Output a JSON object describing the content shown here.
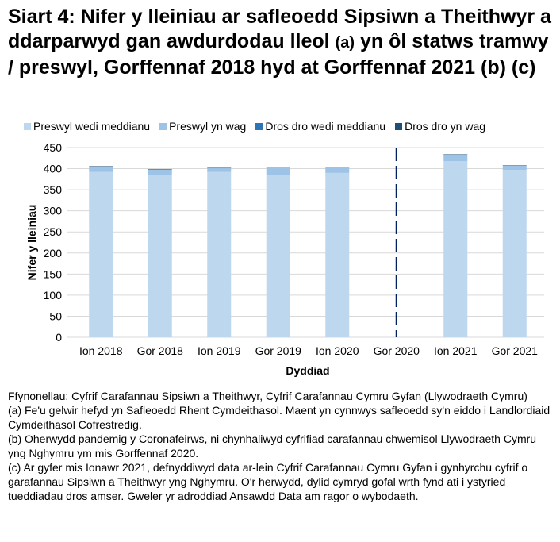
{
  "chart_data": {
    "type": "bar",
    "stacked": true,
    "title": "Siart 4: Nifer y lleiniau ar safleoedd Sipsiwn a Theithwyr a ddarparwyd gan awdurdodau lleol",
    "title_suffix": "(a)",
    "title_line2": "yn ôl statws tramwy / preswyl, Gorffennaf 2018 hyd at Gorffennaf 2021 (b) (c)",
    "xlabel": "Dyddiad",
    "ylabel": "Nifer y lleiniau",
    "ylim": [
      0,
      450
    ],
    "yticks": [
      0,
      50,
      100,
      150,
      200,
      250,
      300,
      350,
      400,
      450
    ],
    "grid": true,
    "legend": "top",
    "categories": [
      "Ion 2018",
      "Gor 2018",
      "Ion 2019",
      "Gor 2019",
      "Ion 2020",
      "Gor 2020",
      "Ion 2021",
      "Gor 2021"
    ],
    "series": [
      {
        "name": "Preswyl wedi meddianu",
        "color": "#bdd7ee",
        "values": [
          392,
          385,
          392,
          386,
          390,
          null,
          418,
          397
        ]
      },
      {
        "name": "Preswyl yn wag",
        "color": "#9dc3e6",
        "values": [
          13,
          13,
          9,
          17,
          13,
          null,
          15,
          10
        ]
      },
      {
        "name": "Dros dro wedi meddianu",
        "color": "#2e75b6",
        "values": [
          0,
          0,
          0,
          1,
          0,
          null,
          0,
          0
        ]
      },
      {
        "name": "Dros dro yn wag",
        "color": "#1f4e79",
        "values": [
          1,
          1,
          1,
          0,
          1,
          null,
          1,
          1
        ]
      }
    ],
    "annotation": {
      "type": "dashed-vertical-line",
      "at": "Gor 2020",
      "color": "#002060"
    }
  },
  "notes": [
    "Ffynonellau: Cyfrif Carafannau Sipsiwn a Theithwyr, Cyfrif Carafannau Cymru Gyfan (Llywodraeth Cymru)",
    "(a) Fe'u gelwir hefyd yn Safleoedd Rhent Cymdeithasol. Maent yn cynnwys safleoedd sy'n eiddo i Landlordiaid Cymdeithasol Cofrestredig.",
    "(b) Oherwydd pandemig y Coronafeirws, ni chynhaliwyd cyfrifiad carafannau chwemisol Llywodraeth Cymru yng Nghymru ym mis Gorffennaf 2020.",
    "(c) Ar gyfer mis Ionawr 2021, defnyddiwyd data ar-lein Cyfrif Carafannau Cymru Gyfan i gynhyrchu cyfrif o garafannau Sipsiwn a Theithwyr yng Nghymru. O'r herwydd, dylid cymryd gofal wrth fynd ati i ystyried tueddiadau dros amser. Gweler yr adroddiad Ansawdd Data am ragor o wybodaeth."
  ]
}
